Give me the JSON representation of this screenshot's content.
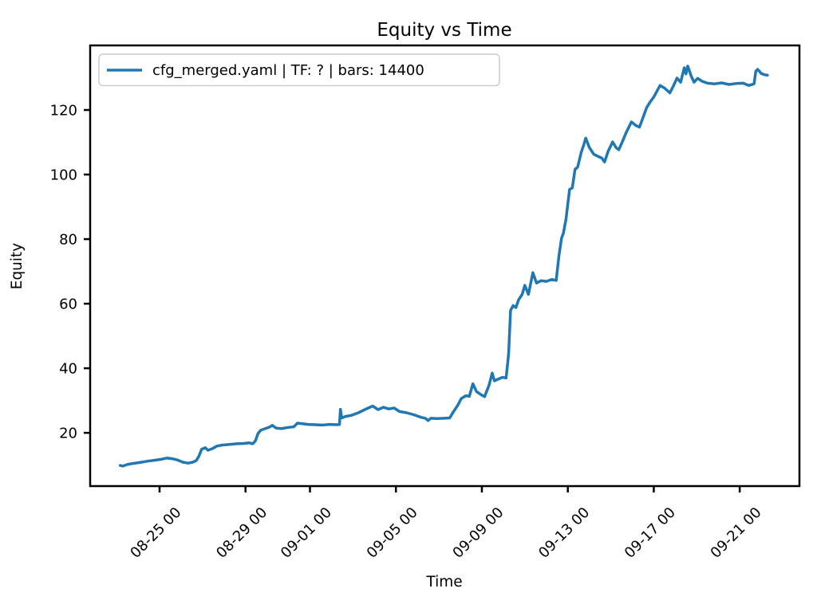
{
  "figure": {
    "background": "#ffffff"
  },
  "chart_data": {
    "type": "line",
    "title": "Equity vs Time",
    "xlabel": "Time",
    "ylabel": "Equity",
    "legend": [
      "cfg_merged.yaml | TF: ? | bars: 14400"
    ],
    "legend_position": "upper left",
    "line_color": "#1f77b4",
    "axis_color": "#000000",
    "legend_border_color": "#cccccc",
    "grid": false,
    "ylim": [
      3.5,
      140.0
    ],
    "xlim_days_from_0823": [
      -1.23,
      31.78
    ],
    "y_ticks": [
      20,
      40,
      60,
      80,
      100,
      120
    ],
    "x_tick_labels": [
      "08-25 00",
      "08-29 00",
      "09-01 00",
      "09-05 00",
      "09-09 00",
      "09-13 00",
      "09-17 00",
      "09-21 00"
    ],
    "series": [
      {
        "name": "cfg_merged.yaml | TF: ? | bars: 14400",
        "points": [
          [
            "08-23 04:00",
            9.9
          ],
          [
            "08-23 07:00",
            9.7
          ],
          [
            "08-23 12:00",
            10.2
          ],
          [
            "08-23 18:00",
            10.5
          ],
          [
            "08-24 02:00",
            10.8
          ],
          [
            "08-24 10:00",
            11.2
          ],
          [
            "08-24 18:00",
            11.5
          ],
          [
            "08-25 02:00",
            11.8
          ],
          [
            "08-25 08:00",
            12.2
          ],
          [
            "08-25 14:00",
            12.0
          ],
          [
            "08-25 20:00",
            11.6
          ],
          [
            "08-26 02:00",
            10.9
          ],
          [
            "08-26 08:00",
            10.6
          ],
          [
            "08-26 13:00",
            10.9
          ],
          [
            "08-26 17:00",
            11.4
          ],
          [
            "08-26 20:00",
            12.8
          ],
          [
            "08-26 23:00",
            14.9
          ],
          [
            "08-27 03:00",
            15.4
          ],
          [
            "08-27 06:00",
            14.6
          ],
          [
            "08-27 11:00",
            15.1
          ],
          [
            "08-27 16:00",
            15.9
          ],
          [
            "08-27 22:00",
            16.2
          ],
          [
            "08-28 06:00",
            16.4
          ],
          [
            "08-28 14:00",
            16.6
          ],
          [
            "08-28 22:00",
            16.7
          ],
          [
            "08-29 04:00",
            16.9
          ],
          [
            "08-29 08:00",
            16.6
          ],
          [
            "08-29 11:00",
            17.5
          ],
          [
            "08-29 14:00",
            19.8
          ],
          [
            "08-29 17:00",
            20.8
          ],
          [
            "08-29 22:00",
            21.3
          ],
          [
            "08-30 03:00",
            21.8
          ],
          [
            "08-30 06:00",
            22.3
          ],
          [
            "08-30 10:00",
            21.5
          ],
          [
            "08-30 16:00",
            21.3
          ],
          [
            "08-30 22:00",
            21.6
          ],
          [
            "08-31 06:00",
            21.9
          ],
          [
            "08-31 10:00",
            23.0
          ],
          [
            "08-31 16:00",
            22.8
          ],
          [
            "08-31 22:00",
            22.6
          ],
          [
            "09-01 06:00",
            22.5
          ],
          [
            "09-01 14:00",
            22.4
          ],
          [
            "09-01 22:00",
            22.6
          ],
          [
            "09-02 06:00",
            22.5
          ],
          [
            "09-02 09:00",
            22.6
          ],
          [
            "09-02 10:00",
            27.3
          ],
          [
            "09-02 11:30",
            24.6
          ],
          [
            "09-02 16:00",
            25.1
          ],
          [
            "09-02 22:00",
            25.4
          ],
          [
            "09-03 06:00",
            26.2
          ],
          [
            "09-03 14:00",
            27.3
          ],
          [
            "09-03 22:00",
            28.3
          ],
          [
            "09-04 04:00",
            27.2
          ],
          [
            "09-04 10:00",
            27.9
          ],
          [
            "09-04 16:00",
            27.4
          ],
          [
            "09-04 22:00",
            27.7
          ],
          [
            "09-05 04:00",
            26.6
          ],
          [
            "09-05 12:00",
            26.2
          ],
          [
            "09-05 20:00",
            25.6
          ],
          [
            "09-06 04:00",
            24.8
          ],
          [
            "09-06 09:00",
            24.5
          ],
          [
            "09-06 12:00",
            23.8
          ],
          [
            "09-06 15:00",
            24.5
          ],
          [
            "09-06 22:00",
            24.4
          ],
          [
            "09-07 06:00",
            24.5
          ],
          [
            "09-07 12:00",
            24.6
          ],
          [
            "09-07 16:00",
            26.4
          ],
          [
            "09-07 21:00",
            28.5
          ],
          [
            "09-08 01:00",
            30.6
          ],
          [
            "09-08 06:00",
            31.5
          ],
          [
            "09-08 10:00",
            31.3
          ],
          [
            "09-08 14:00",
            35.2
          ],
          [
            "09-08 18:00",
            32.8
          ],
          [
            "09-08 22:00",
            32.0
          ],
          [
            "09-09 03:00",
            31.2
          ],
          [
            "09-09 08:00",
            34.7
          ],
          [
            "09-09 11:30",
            38.5
          ],
          [
            "09-09 14:00",
            36.1
          ],
          [
            "09-09 18:00",
            36.6
          ],
          [
            "09-09 23:00",
            37.2
          ],
          [
            "09-10 03:00",
            37.0
          ],
          [
            "09-10 05:00",
            42.0
          ],
          [
            "09-10 06:00",
            45.0
          ],
          [
            "09-10 08:00",
            57.9
          ],
          [
            "09-10 11:00",
            59.4
          ],
          [
            "09-10 14:00",
            58.8
          ],
          [
            "09-10 17:00",
            61.2
          ],
          [
            "09-10 21:00",
            62.9
          ],
          [
            "09-11 00:00",
            65.7
          ],
          [
            "09-11 04:00",
            62.9
          ],
          [
            "09-11 09:00",
            69.6
          ],
          [
            "09-11 13:00",
            66.4
          ],
          [
            "09-11 18:00",
            67.1
          ],
          [
            "09-12 00:00",
            66.9
          ],
          [
            "09-12 06:00",
            67.5
          ],
          [
            "09-12 11:00",
            67.2
          ],
          [
            "09-12 14:00",
            74.7
          ],
          [
            "09-12 17:00",
            80.3
          ],
          [
            "09-12 19:00",
            81.8
          ],
          [
            "09-12 22:00",
            86.2
          ],
          [
            "09-13 02:00",
            95.4
          ],
          [
            "09-13 05:00",
            95.9
          ],
          [
            "09-13 08:00",
            101.6
          ],
          [
            "09-13 11:00",
            102.3
          ],
          [
            "09-13 15:00",
            106.9
          ],
          [
            "09-13 18:00",
            109.4
          ],
          [
            "09-13 20:00",
            111.3
          ],
          [
            "09-14 00:00",
            108.4
          ],
          [
            "09-14 05:00",
            106.3
          ],
          [
            "09-14 10:00",
            105.6
          ],
          [
            "09-14 14:00",
            105.1
          ],
          [
            "09-14 17:00",
            103.9
          ],
          [
            "09-14 21:00",
            107.2
          ],
          [
            "09-15 02:00",
            110.1
          ],
          [
            "09-15 06:00",
            108.3
          ],
          [
            "09-15 09:00",
            107.7
          ],
          [
            "09-15 13:00",
            110.2
          ],
          [
            "09-15 17:00",
            112.9
          ],
          [
            "09-15 23:00",
            116.3
          ],
          [
            "09-16 04:00",
            115.2
          ],
          [
            "09-16 08:00",
            114.7
          ],
          [
            "09-16 12:00",
            117.6
          ],
          [
            "09-16 16:00",
            120.7
          ],
          [
            "09-16 20:00",
            122.5
          ],
          [
            "09-17 00:00",
            124.0
          ],
          [
            "09-17 07:00",
            127.6
          ],
          [
            "09-17 12:00",
            126.8
          ],
          [
            "09-17 18:00",
            125.3
          ],
          [
            "09-17 22:00",
            127.5
          ],
          [
            "09-18 02:00",
            129.9
          ],
          [
            "09-18 06:00",
            128.6
          ],
          [
            "09-18 10:00",
            133.1
          ],
          [
            "09-18 12:00",
            131.2
          ],
          [
            "09-18 14:00",
            133.6
          ],
          [
            "09-18 18:00",
            130.4
          ],
          [
            "09-18 21:00",
            128.6
          ],
          [
            "09-19 01:00",
            129.8
          ],
          [
            "09-19 06:00",
            128.9
          ],
          [
            "09-19 12:00",
            128.3
          ],
          [
            "09-19 20:00",
            128.1
          ],
          [
            "09-20 04:00",
            128.4
          ],
          [
            "09-20 12:00",
            127.9
          ],
          [
            "09-20 20:00",
            128.2
          ],
          [
            "09-21 04:00",
            128.3
          ],
          [
            "09-21 10:00",
            127.6
          ],
          [
            "09-21 14:00",
            127.9
          ],
          [
            "09-21 16:00",
            128.1
          ],
          [
            "09-21 18:00",
            132.0
          ],
          [
            "09-21 20:00",
            132.6
          ],
          [
            "09-22 00:00",
            131.3
          ],
          [
            "09-22 04:00",
            130.9
          ],
          [
            "09-22 07:00",
            130.8
          ]
        ]
      }
    ]
  }
}
